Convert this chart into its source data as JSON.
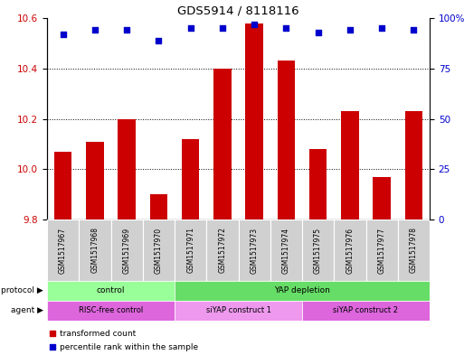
{
  "title": "GDS5914 / 8118116",
  "samples": [
    "GSM1517967",
    "GSM1517968",
    "GSM1517969",
    "GSM1517970",
    "GSM1517971",
    "GSM1517972",
    "GSM1517973",
    "GSM1517974",
    "GSM1517975",
    "GSM1517976",
    "GSM1517977",
    "GSM1517978"
  ],
  "transformed_counts": [
    10.07,
    10.11,
    10.2,
    9.9,
    10.12,
    10.4,
    10.58,
    10.43,
    10.08,
    10.23,
    9.97,
    10.23
  ],
  "percentile_ranks": [
    92,
    94,
    94,
    89,
    95,
    95,
    97,
    95,
    93,
    94,
    95,
    94
  ],
  "bar_color": "#cc0000",
  "dot_color": "#0000cc",
  "ylim_left": [
    9.8,
    10.6
  ],
  "ylim_right": [
    0,
    100
  ],
  "yticks_left": [
    9.8,
    10.0,
    10.2,
    10.4,
    10.6
  ],
  "yticks_right": [
    0,
    25,
    50,
    75,
    100
  ],
  "ytick_labels_right": [
    "0",
    "25",
    "50",
    "75",
    "100%"
  ],
  "grid_color": "black",
  "protocol_groups": [
    {
      "label": "control",
      "start": 0,
      "end": 4,
      "color": "#99ff99"
    },
    {
      "label": "YAP depletion",
      "start": 4,
      "end": 12,
      "color": "#66dd66"
    }
  ],
  "agent_groups": [
    {
      "label": "RISC-free control",
      "start": 0,
      "end": 4,
      "color": "#dd66dd"
    },
    {
      "label": "siYAP construct 1",
      "start": 4,
      "end": 8,
      "color": "#ee99ee"
    },
    {
      "label": "siYAP construct 2",
      "start": 8,
      "end": 12,
      "color": "#dd66dd"
    }
  ],
  "legend_items": [
    {
      "label": "transformed count",
      "color": "#cc0000"
    },
    {
      "label": "percentile rank within the sample",
      "color": "#0000cc"
    }
  ],
  "left_axis_color": "#cc0000",
  "right_axis_color": "#0000cc",
  "bg_color": "#ffffff",
  "sample_bg_color": "#d0d0d0",
  "fig_width": 5.13,
  "fig_height": 3.93,
  "dpi": 100
}
